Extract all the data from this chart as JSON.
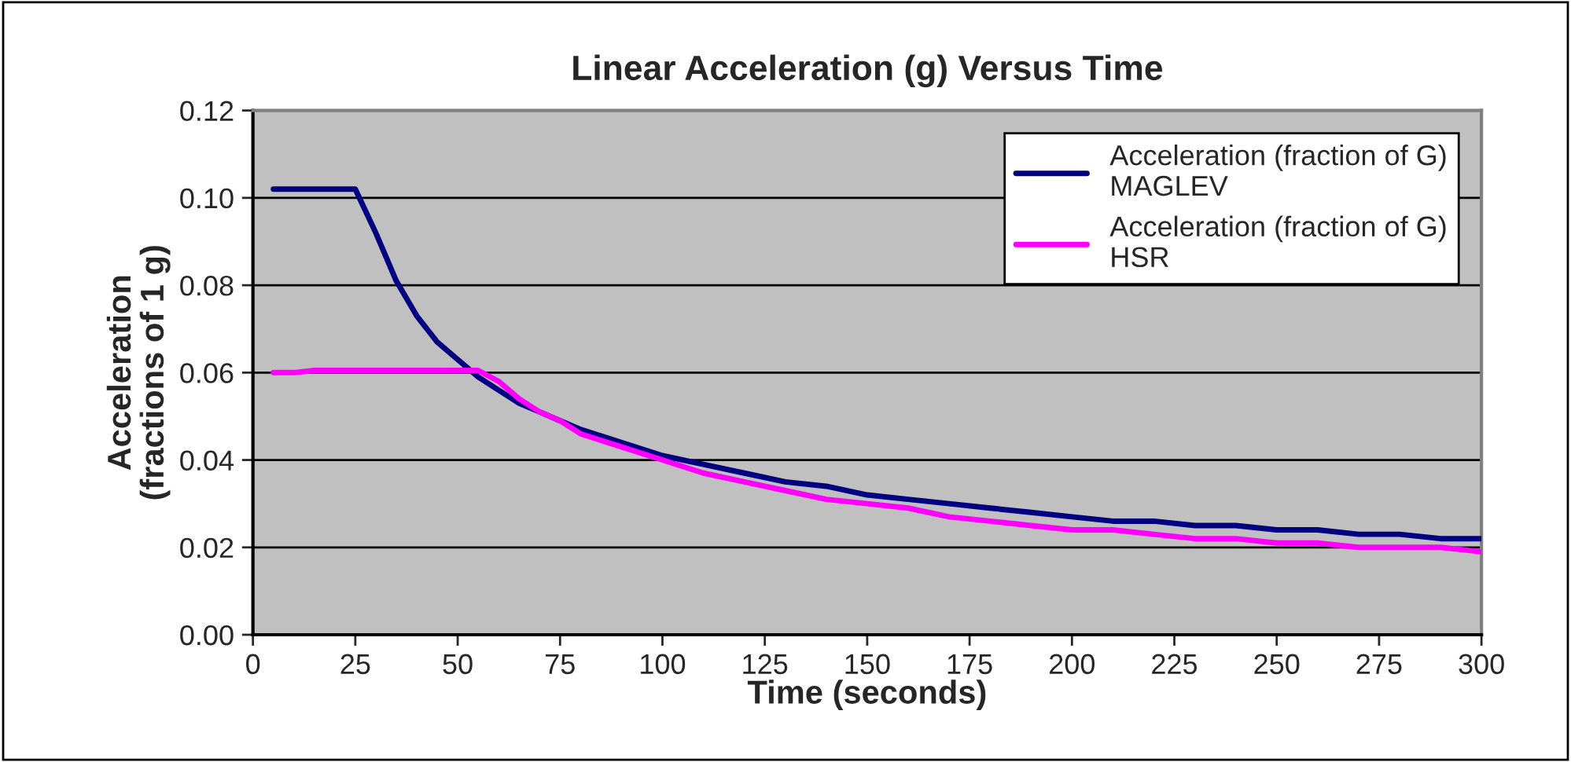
{
  "chart_data": {
    "type": "line",
    "title": "Linear Acceleration (g) Versus Time",
    "xlabel": "Time (seconds)",
    "ylabel": "Acceleration\n(fractions of 1 g)",
    "xlim": [
      0,
      300
    ],
    "xticks": [
      0,
      25,
      50,
      75,
      100,
      125,
      150,
      175,
      200,
      225,
      250,
      275,
      300
    ],
    "ylim": [
      0,
      0.12
    ],
    "yticks": [
      {
        "value": 0,
        "label": "0.00"
      },
      {
        "value": 0.02,
        "label": "0.02"
      },
      {
        "value": 0.04,
        "label": "0.04"
      },
      {
        "value": 0.06,
        "label": "0.06"
      },
      {
        "value": 0.08,
        "label": "0.08"
      },
      {
        "value": 0.1,
        "label": "0.10"
      },
      {
        "value": 0.12,
        "label": "0.12"
      }
    ],
    "grid": "y",
    "legend": "top right",
    "marker": "none",
    "line_style": "solid",
    "series": [
      {
        "name": "Acceleration (fraction of G)\nMAGLEV",
        "color": "#000080",
        "x": [
          5,
          10,
          15,
          20,
          25,
          30,
          35,
          40,
          45,
          50,
          55,
          60,
          65,
          70,
          75,
          80,
          90,
          100,
          110,
          120,
          130,
          140,
          150,
          160,
          170,
          180,
          190,
          200,
          210,
          220,
          230,
          240,
          250,
          260,
          270,
          280,
          290,
          300
        ],
        "values": [
          0.102,
          0.102,
          0.102,
          0.102,
          0.102,
          0.092,
          0.081,
          0.073,
          0.067,
          0.063,
          0.059,
          0.056,
          0.053,
          0.051,
          0.049,
          0.047,
          0.044,
          0.041,
          0.039,
          0.037,
          0.035,
          0.034,
          0.032,
          0.031,
          0.03,
          0.029,
          0.028,
          0.027,
          0.026,
          0.026,
          0.025,
          0.025,
          0.024,
          0.024,
          0.023,
          0.023,
          0.022,
          0.022
        ]
      },
      {
        "name": "Acceleration (fraction of G)\nHSR",
        "color": "#ff00ff",
        "x": [
          5,
          10,
          15,
          20,
          25,
          30,
          35,
          40,
          45,
          50,
          55,
          60,
          65,
          70,
          75,
          80,
          90,
          100,
          110,
          120,
          130,
          140,
          150,
          160,
          170,
          180,
          190,
          200,
          210,
          220,
          230,
          240,
          250,
          260,
          270,
          280,
          290,
          300
        ],
        "values": [
          0.06,
          0.06,
          0.0605,
          0.0605,
          0.0605,
          0.0605,
          0.0605,
          0.0605,
          0.0605,
          0.0605,
          0.0605,
          0.058,
          0.054,
          0.051,
          0.049,
          0.046,
          0.043,
          0.04,
          0.037,
          0.035,
          0.033,
          0.031,
          0.03,
          0.029,
          0.027,
          0.026,
          0.025,
          0.024,
          0.024,
          0.023,
          0.022,
          0.022,
          0.021,
          0.021,
          0.02,
          0.02,
          0.02,
          0.019
        ]
      }
    ]
  }
}
